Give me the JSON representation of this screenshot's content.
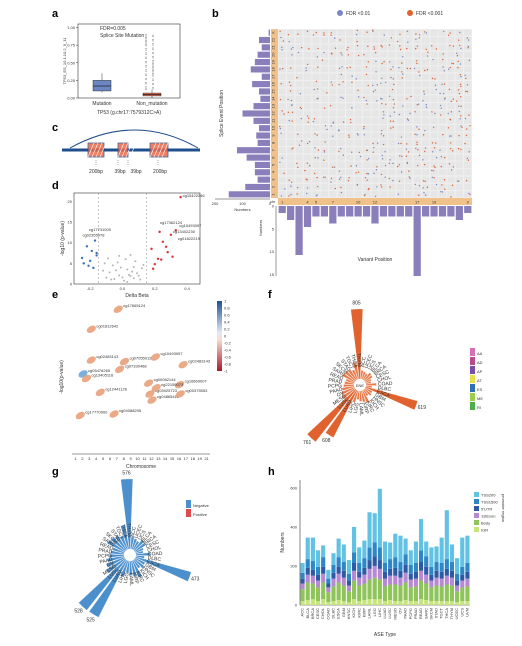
{
  "panels": {
    "a": "a",
    "b": "b",
    "c": "c",
    "d": "d",
    "e": "e",
    "f": "f",
    "g": "g",
    "h": "h"
  },
  "chart_data": [
    {
      "panel": "a",
      "type": "box",
      "annotation": [
        "FDR=0.005",
        "Splice Site Mutation"
      ],
      "ylabel": "TP53_ES_10.1.10.2_9_11",
      "xlabel": "TP53 (g.chr17:7579312C>A)",
      "categories": [
        "Mutation",
        "Non_mutation"
      ],
      "yticks": [
        "0.00",
        "0.25",
        "0.50",
        "0.75",
        "1.00"
      ],
      "ylim": [
        0,
        1.05
      ],
      "boxes": [
        {
          "name": "Mutation",
          "q1": 0.1,
          "median": 0.17,
          "q3": 0.25,
          "min": 0.08,
          "max": 0.35,
          "color": "#6b86c2"
        },
        {
          "name": "Non_mutation",
          "q1": 0.03,
          "median": 0.05,
          "q3": 0.07,
          "min": 0.0,
          "max": 0.12,
          "color": "#e9694a"
        }
      ]
    },
    {
      "panel": "b",
      "type": "heatmap",
      "legend": [
        {
          "label": "FDR <0.01",
          "color": "#7b86c9"
        },
        {
          "label": "FDR <0.001",
          "color": "#e0622e"
        }
      ],
      "ylabel": "Splice Event Position",
      "xlabel": "Variant Position",
      "row_labels": [
        "X",
        "22",
        "21",
        "20",
        "19",
        "18",
        "17",
        "16",
        "15",
        "14",
        "13",
        "12",
        "11",
        "10",
        "9",
        "8",
        "7",
        "6",
        "5",
        "4",
        "3",
        "2",
        "1"
      ],
      "col_labels": [
        "1",
        "2",
        "3",
        "4",
        "5",
        "6",
        "7",
        "8",
        "9",
        "10",
        "11",
        "12",
        "13",
        "14",
        "15",
        "16",
        "17",
        "18",
        "19",
        "20",
        "21",
        "22",
        "X"
      ],
      "x_tick_labels": [
        "1",
        "4",
        "5",
        "7",
        "10",
        "12",
        "17",
        "19",
        "X"
      ],
      "chr_label": "chr",
      "left_bar_values": [
        5,
        40,
        30,
        45,
        55,
        70,
        30,
        65,
        40,
        35,
        60,
        100,
        60,
        40,
        50,
        45,
        120,
        85,
        55,
        55,
        45,
        90,
        150
      ],
      "left_axis_ticks": [
        "200",
        "100",
        "0"
      ],
      "left_axis_label": "Numbers",
      "bottom_bar_values": [
        2,
        4,
        14,
        6,
        3,
        3,
        5,
        3,
        3,
        3,
        3,
        5,
        3,
        3,
        3,
        3,
        20,
        3,
        3,
        3,
        3,
        4,
        2
      ],
      "bottom_axis_ticks": [
        "0",
        "5",
        "10",
        "15"
      ],
      "bottom_axis_label": "Numbers"
    },
    {
      "panel": "c",
      "type": "diagram",
      "labels": [
        "200bp",
        "39bp",
        "39bp",
        "200bp"
      ]
    },
    {
      "panel": "d",
      "type": "scatter",
      "xlabel": "Delta Beta",
      "ylabel": "-log10 (p-value)",
      "xticks": [
        "-0.2",
        "0.0",
        "0.2",
        "0.4"
      ],
      "yticks": [
        "0",
        "5",
        "10",
        "15",
        "20"
      ],
      "xlim": [
        -0.3,
        0.48
      ],
      "ylim": [
        0,
        22
      ],
      "points_gray": [
        [
          -0.05,
          1.2
        ],
        [
          -0.02,
          2.1
        ],
        [
          0.01,
          0.8
        ],
        [
          0.03,
          3.5
        ],
        [
          0.05,
          1.9
        ],
        [
          -0.08,
          2.8
        ],
        [
          0.07,
          4.1
        ],
        [
          -0.1,
          1.5
        ],
        [
          0.09,
          2.6
        ],
        [
          -0.03,
          5.2
        ],
        [
          0.02,
          6.0
        ],
        [
          0.06,
          3.0
        ],
        [
          -0.06,
          4.5
        ],
        [
          0.11,
          1.1
        ],
        [
          -0.12,
          3.2
        ],
        [
          0.04,
          2.2
        ],
        [
          -0.01,
          4.0
        ],
        [
          0.08,
          5.5
        ],
        [
          -0.09,
          6.2
        ],
        [
          0.12,
          3.8
        ],
        [
          0.0,
          1.6
        ],
        [
          -0.04,
          3.3
        ],
        [
          0.1,
          2.0
        ],
        [
          -0.07,
          1.1
        ],
        [
          0.05,
          7.0
        ],
        [
          -0.11,
          5.0
        ],
        [
          0.13,
          4.6
        ],
        [
          0.03,
          0.5
        ],
        [
          -0.02,
          6.8
        ],
        [
          0.07,
          1.4
        ]
      ],
      "points_blue": [
        [
          -0.16,
          7.5
        ],
        [
          -0.2,
          5.6
        ],
        [
          -0.22,
          9.1
        ],
        [
          -0.18,
          3.9
        ],
        [
          -0.25,
          6.3
        ],
        [
          -0.17,
          10.5
        ],
        [
          -0.21,
          4.4
        ],
        [
          -0.19,
          8.0
        ],
        [
          -0.24,
          5.0
        ],
        [
          -0.16,
          6.9
        ]
      ],
      "points_red": [
        [
          0.18,
          8.5
        ],
        [
          0.22,
          6.1
        ],
        [
          0.25,
          10.2
        ],
        [
          0.2,
          4.8
        ],
        [
          0.28,
          7.7
        ],
        [
          0.3,
          11.9
        ],
        [
          0.24,
          5.9
        ],
        [
          0.27,
          9.0
        ],
        [
          0.33,
          13.0
        ],
        [
          0.36,
          21.0
        ],
        [
          0.19,
          3.7
        ],
        [
          0.31,
          6.6
        ],
        [
          0.23,
          12.6
        ]
      ],
      "labels": [
        {
          "text": "cg15422246",
          "x": 0.36,
          "y": 21.0
        },
        {
          "text": "cg17362124",
          "x": 0.22,
          "y": 14.5
        },
        {
          "text": "cg10493097",
          "x": 0.34,
          "y": 13.8
        },
        {
          "text": "cg13402230",
          "x": 0.3,
          "y": 12.3
        },
        {
          "text": "cg01822219",
          "x": 0.33,
          "y": 10.6
        },
        {
          "text": "cg17731000",
          "x": -0.22,
          "y": 12.8
        },
        {
          "text": "cg02355978",
          "x": -0.26,
          "y": 11.5
        }
      ]
    },
    {
      "panel": "e",
      "type": "scatter",
      "xlabel": "Chromosome",
      "ylabel": "-log10(p-value)",
      "xticks": [
        "1",
        "2",
        "3",
        "4",
        "5",
        "6",
        "7",
        "8",
        "9",
        "10",
        "11",
        "12",
        "13",
        "14",
        "15",
        "16",
        "17",
        "18",
        "19",
        "21"
      ],
      "colorbar_ticks": [
        "1",
        "0.8",
        "0.6",
        "0.4",
        "0.2",
        "0",
        "-0.2",
        "-0.4",
        "-0.6",
        "-0.8",
        "-1"
      ],
      "colorbar_range": [
        -1,
        1
      ],
      "points": [
        {
          "label": "cg17665124",
          "x": 7.2,
          "y": 94,
          "v": -0.5
        },
        {
          "label": "cg01812642",
          "x": 3.3,
          "y": 81,
          "v": -0.6
        },
        {
          "label": "cg10493097",
          "x": 12.6,
          "y": 63,
          "v": -0.45
        },
        {
          "label": "cg02483143",
          "x": 3.3,
          "y": 61,
          "v": -0.3
        },
        {
          "label": "cg07055012",
          "x": 8.1,
          "y": 60,
          "v": -0.3
        },
        {
          "label": "cg02483143",
          "x": 16.6,
          "y": 58,
          "v": -0.4
        },
        {
          "label": "cg05476265",
          "x": 2.1,
          "y": 52,
          "v": 0.6
        },
        {
          "label": "cg13405116",
          "x": 2.6,
          "y": 49,
          "v": -0.25
        },
        {
          "label": "cg00082144",
          "x": 11.6,
          "y": 46,
          "v": -0.3
        },
        {
          "label": "cg16669007",
          "x": 16.1,
          "y": 45,
          "v": -0.3
        },
        {
          "label": "cg07330468",
          "x": 7.4,
          "y": 55,
          "v": -0.2
        },
        {
          "label": "cg12441126",
          "x": 4.6,
          "y": 40,
          "v": -0.25
        },
        {
          "label": "cg03925723",
          "x": 11.8,
          "y": 39,
          "v": -0.35
        },
        {
          "label": "cg04865411",
          "x": 12.1,
          "y": 35,
          "v": -0.2
        },
        {
          "label": "cg00375553",
          "x": 16.2,
          "y": 39,
          "v": -0.35
        },
        {
          "label": "cg17770900",
          "x": 1.7,
          "y": 25,
          "v": -0.3
        },
        {
          "label": "cg04088295",
          "x": 6.6,
          "y": 26,
          "v": -0.3
        },
        {
          "label": "cg22159073",
          "x": 12.7,
          "y": 43,
          "v": -0.2
        }
      ]
    },
    {
      "panel": "f",
      "type": "radial-bar",
      "center_label": "ENE",
      "legend": [
        {
          "label": "AA",
          "color": "#d46fb8"
        },
        {
          "label": "AD",
          "color": "#b84a8e"
        },
        {
          "label": "AP",
          "color": "#7a4ea8"
        },
        {
          "label": "AT",
          "color": "#e7e04a"
        },
        {
          "label": "ES",
          "color": "#2f6fb8"
        },
        {
          "label": "ME",
          "color": "#9ccc4c"
        },
        {
          "label": "RI",
          "color": "#4daf4a"
        }
      ],
      "categories": [
        "UCEC",
        "UCS",
        "BLCA",
        "BRCA",
        "CESC",
        "CHOL",
        "COAD",
        "DLBC",
        "ESCA",
        "GBM",
        "HNSC",
        "KICH",
        "KIRC",
        "KIRP",
        "LAML",
        "LGG",
        "LIHC",
        "LUAD",
        "LUSC",
        "MESO",
        "OV",
        "PAAD",
        "PCPG",
        "PRAD",
        "READ",
        "SARC",
        "SKCM",
        "STAD",
        "TGCT",
        "THCA",
        "THYM",
        "ACC"
      ],
      "values": [
        90,
        80,
        110,
        100,
        70,
        60,
        120,
        70,
        619,
        90,
        100,
        80,
        150,
        130,
        120,
        100,
        140,
        608,
        761,
        180,
        160,
        140,
        120,
        110,
        100,
        160,
        150,
        140,
        120,
        200,
        805,
        100
      ],
      "bar_labels": [
        {
          "text": "805",
          "index": 30
        },
        {
          "text": "619",
          "index": 8
        },
        {
          "text": "608",
          "index": 17
        },
        {
          "text": "761",
          "index": 18
        }
      ]
    },
    {
      "panel": "g",
      "type": "radial-bar",
      "legend": [
        {
          "label": "Negative",
          "color": "#4c8fcd"
        },
        {
          "label": "Positive",
          "color": "#e04b4b"
        }
      ],
      "categories": [
        "UCEC",
        "UCS",
        "BLCA",
        "BRCA",
        "CESC",
        "CHOL",
        "COAD",
        "DLBC",
        "ESCA",
        "GBM",
        "HNSC",
        "KICH",
        "KIRC",
        "KIRP",
        "LAML",
        "LGG",
        "LIHC",
        "LUAD",
        "LUSC",
        "MESO",
        "OV",
        "PAAD",
        "PCPG",
        "PRAD",
        "READ",
        "SARC",
        "SKCM",
        "STAD",
        "TGCT",
        "THCA",
        "THYM",
        "ACC"
      ],
      "values": [
        90,
        80,
        110,
        100,
        70,
        60,
        120,
        70,
        473,
        90,
        100,
        80,
        150,
        130,
        120,
        100,
        140,
        525,
        528,
        180,
        160,
        140,
        120,
        110,
        100,
        160,
        150,
        140,
        120,
        200,
        576,
        100
      ],
      "bar_labels": [
        {
          "text": "576",
          "index": 30
        },
        {
          "text": "473",
          "index": 8
        },
        {
          "text": "525",
          "index": 17
        },
        {
          "text": "528",
          "index": 18
        }
      ]
    },
    {
      "panel": "h",
      "type": "bar",
      "stacked": true,
      "xlabel": "ASE Type",
      "ylabel": "Numbers",
      "yticks": [
        "0",
        "200",
        "400",
        "600"
      ],
      "ylim": [
        0,
        640
      ],
      "legend_title": "promoter region",
      "series": [
        {
          "name": "IGR",
          "color": "#c6e57a",
          "values": [
            20,
            25,
            30,
            20,
            30,
            15,
            20,
            25,
            20,
            15,
            30,
            20,
            25,
            30,
            30,
            30,
            20,
            25,
            20,
            20,
            25,
            20,
            20,
            30,
            25,
            20,
            20,
            20,
            20,
            20,
            15,
            20,
            20
          ]
        },
        {
          "name": "Body",
          "color": "#8fc45a",
          "values": [
            60,
            90,
            80,
            70,
            85,
            50,
            75,
            90,
            80,
            55,
            95,
            80,
            85,
            100,
            110,
            100,
            75,
            80,
            85,
            80,
            90,
            70,
            75,
            95,
            85,
            70,
            80,
            75,
            85,
            80,
            55,
            70,
            75
          ]
        },
        {
          "name": "1stExon",
          "color": "#b58ad2",
          "values": [
            30,
            40,
            40,
            35,
            45,
            25,
            40,
            45,
            40,
            30,
            50,
            40,
            45,
            55,
            60,
            55,
            40,
            45,
            45,
            40,
            50,
            40,
            40,
            50,
            45,
            35,
            40,
            40,
            45,
            40,
            30,
            35,
            40
          ]
        },
        {
          "name": "5'UTR",
          "color": "#2e5aa5",
          "values": [
            25,
            35,
            30,
            30,
            35,
            20,
            30,
            35,
            35,
            25,
            40,
            30,
            35,
            45,
            50,
            45,
            35,
            35,
            40,
            35,
            40,
            30,
            35,
            45,
            40,
            30,
            35,
            35,
            35,
            35,
            25,
            30,
            35
          ]
        },
        {
          "name": "TSS1500",
          "color": "#2d86c6",
          "values": [
            30,
            45,
            45,
            40,
            50,
            25,
            40,
            50,
            45,
            35,
            55,
            45,
            50,
            65,
            70,
            65,
            45,
            50,
            55,
            45,
            55,
            45,
            45,
            60,
            55,
            40,
            45,
            45,
            50,
            45,
            35,
            40,
            45
          ]
        },
        {
          "name": "TSS200",
          "color": "#62c2e4",
          "values": [
            50,
            110,
            120,
            85,
            60,
            45,
            60,
            95,
            90,
            70,
            130,
            80,
            90,
            180,
            150,
            300,
            110,
            85,
            120,
            135,
            80,
            75,
            110,
            160,
            75,
            100,
            80,
            130,
            250,
            90,
            80,
            150,
            140
          ]
        }
      ],
      "categories": [
        "ACC",
        "BLCA",
        "BRCA",
        "CESC",
        "CHOL",
        "COAD",
        "DLBC",
        "ESCA",
        "GBM",
        "HNSC",
        "KICH",
        "KIRC",
        "KIRP",
        "LAML",
        "LGG",
        "LIHC",
        "LUAD",
        "LUSC",
        "MESO",
        "OV",
        "PAAD",
        "PCPG",
        "PRAD",
        "READ",
        "SARC",
        "SKCM",
        "STAD",
        "TGCT",
        "THCA",
        "THYM",
        "UCEC",
        "UCS",
        "UVM"
      ]
    }
  ]
}
